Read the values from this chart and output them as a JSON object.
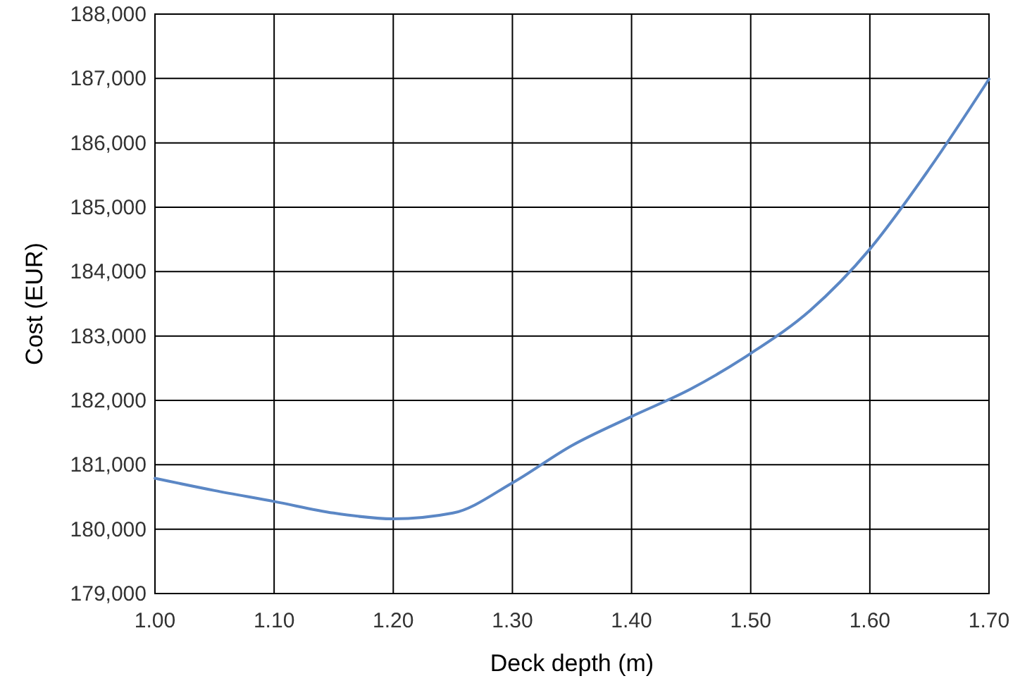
{
  "chart_data": {
    "type": "line",
    "xlabel": "Deck depth (m)",
    "ylabel": "Cost (EUR)",
    "x": [
      1.0,
      1.05,
      1.1,
      1.15,
      1.2,
      1.25,
      1.3,
      1.35,
      1.4,
      1.45,
      1.5,
      1.55,
      1.6,
      1.65,
      1.7
    ],
    "series": [
      {
        "color": "#5b87c5",
        "values": [
          180790,
          180600,
          180430,
          180250,
          180160,
          180250,
          180720,
          181300,
          181750,
          182180,
          182730,
          183400,
          184350,
          185600,
          186990
        ]
      }
    ],
    "xlim": [
      1.0,
      1.7
    ],
    "ylim": [
      179000,
      188000
    ],
    "xticks": [
      {
        "value": 1.0,
        "label": "1.00"
      },
      {
        "value": 1.1,
        "label": "1.10"
      },
      {
        "value": 1.2,
        "label": "1.20"
      },
      {
        "value": 1.3,
        "label": "1.30"
      },
      {
        "value": 1.4,
        "label": "1.40"
      },
      {
        "value": 1.5,
        "label": "1.50"
      },
      {
        "value": 1.6,
        "label": "1.60"
      },
      {
        "value": 1.7,
        "label": "1.70"
      }
    ],
    "yticks": [
      {
        "value": 179000,
        "label": "179,000"
      },
      {
        "value": 180000,
        "label": "180,000"
      },
      {
        "value": 181000,
        "label": "181,000"
      },
      {
        "value": 182000,
        "label": "182,000"
      },
      {
        "value": 183000,
        "label": "183,000"
      },
      {
        "value": 184000,
        "label": "184,000"
      },
      {
        "value": 185000,
        "label": "185,000"
      },
      {
        "value": 186000,
        "label": "186,000"
      },
      {
        "value": 187000,
        "label": "187,000"
      },
      {
        "value": 188000,
        "label": "188,000"
      }
    ],
    "grid": true,
    "marker": "none",
    "line_style": "solid"
  }
}
